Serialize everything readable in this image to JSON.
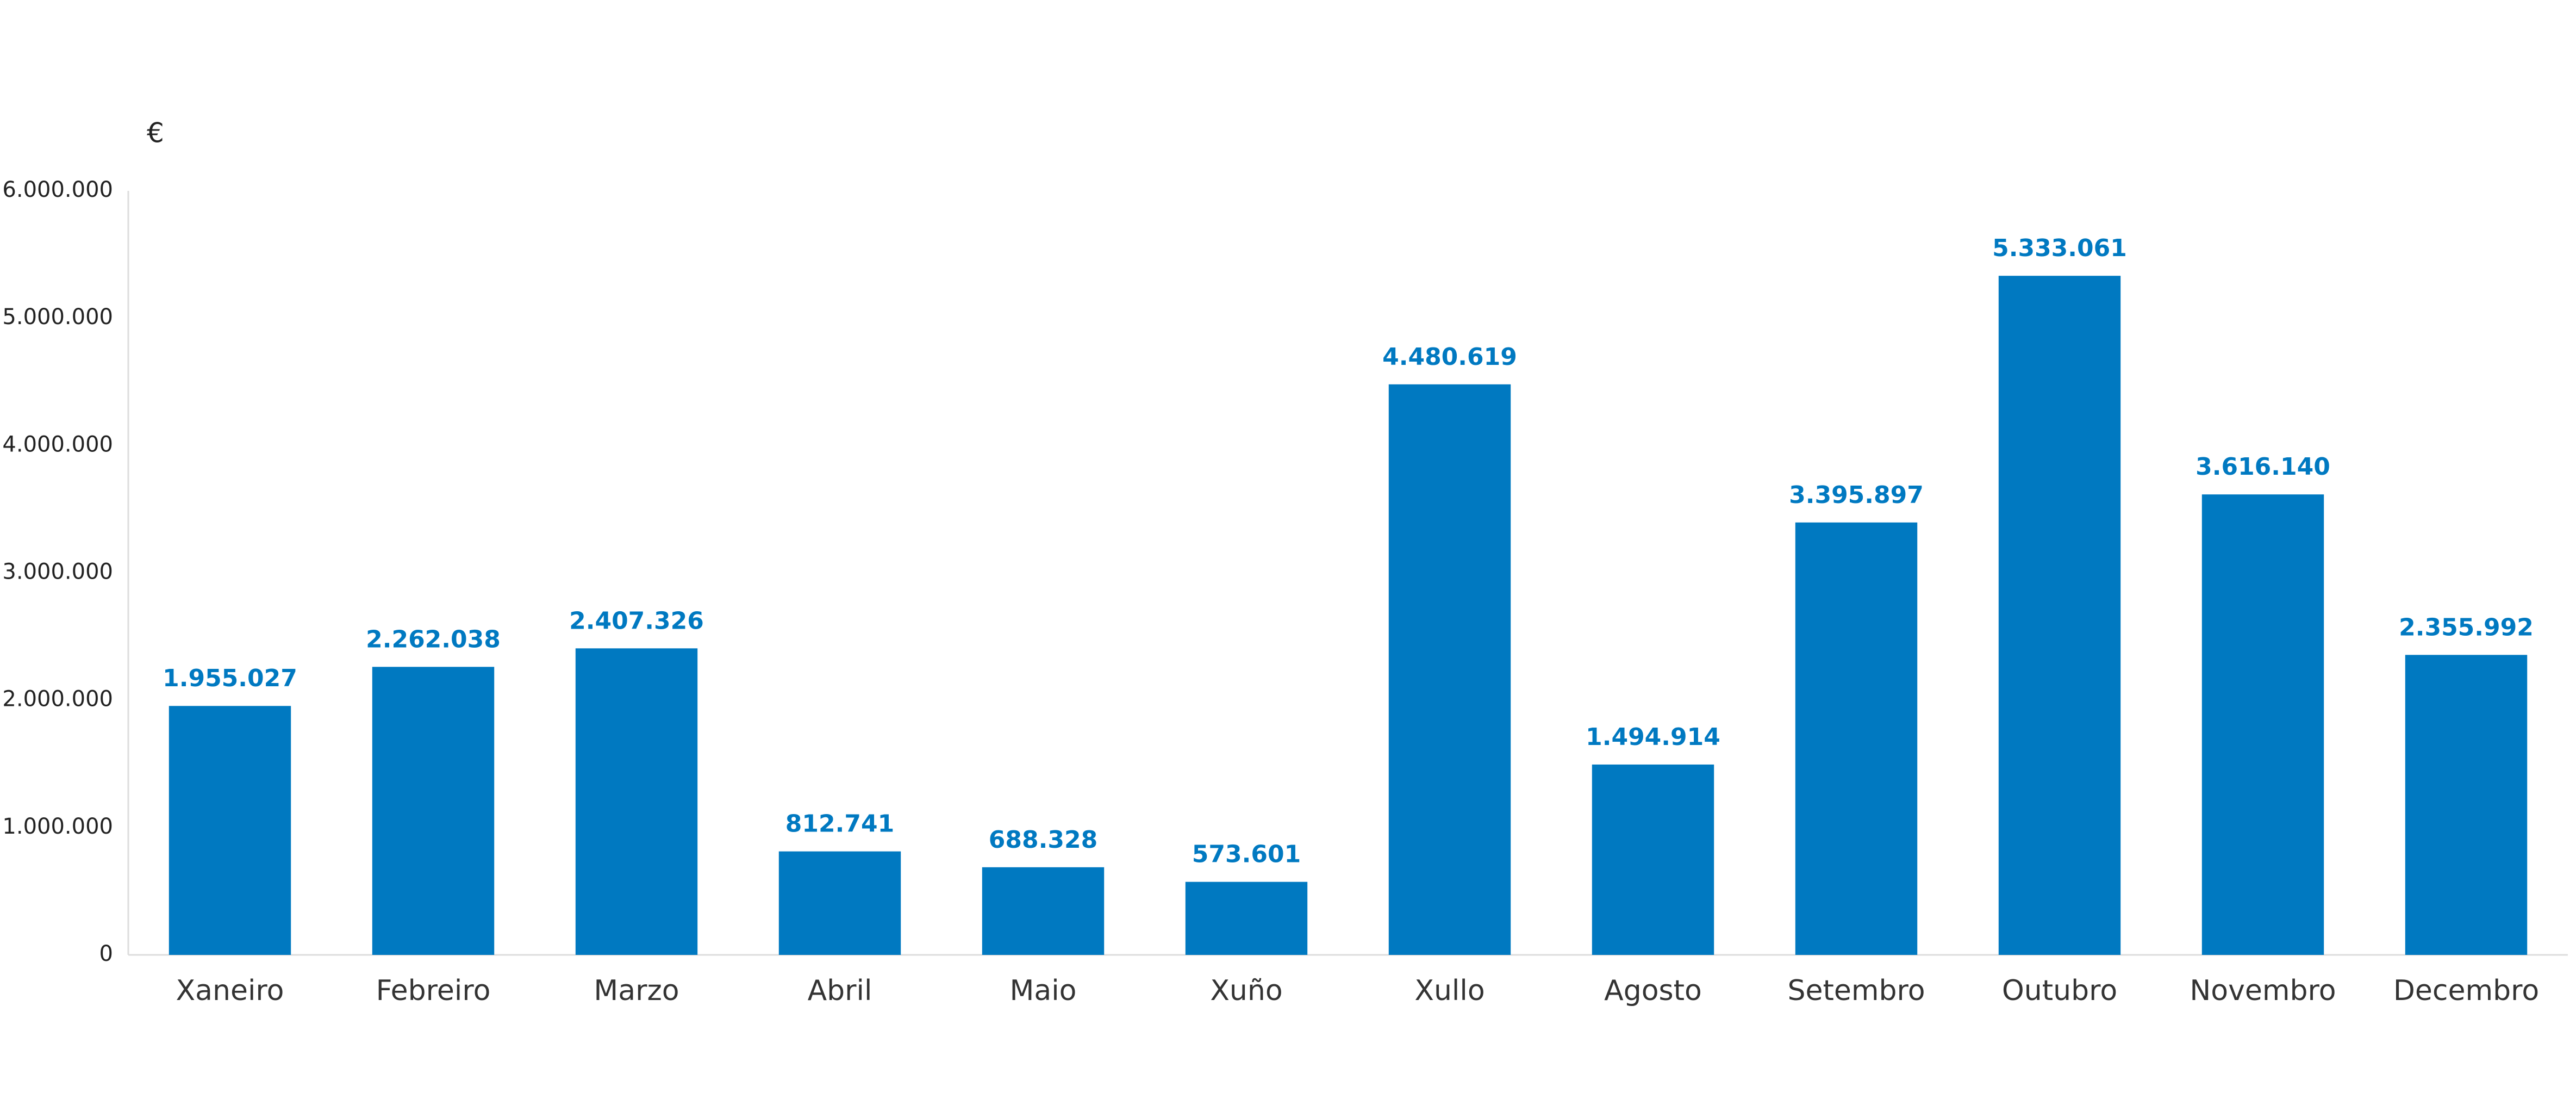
{
  "chart_data": {
    "type": "bar",
    "ylabel": "€",
    "categories": [
      "Xaneiro",
      "Febreiro",
      "Marzo",
      "Abril",
      "Maio",
      "Xuño",
      "Xullo",
      "Agosto",
      "Setembro",
      "Outubro",
      "Novembro",
      "Decembro"
    ],
    "values": [
      1955027,
      2262038,
      2407326,
      812741,
      688328,
      573601,
      4480619,
      1494914,
      3395897,
      5333061,
      3616140,
      2355992
    ],
    "value_labels": [
      "1.955.027",
      "2.262.038",
      "2.407.326",
      "812.741",
      "688.328",
      "573.601",
      "4.480.619",
      "1.494.914",
      "3.395.897",
      "5.333.061",
      "3.616.140",
      "2.355.992"
    ],
    "color": "#0079c1",
    "ylim": [
      0,
      6000000
    ],
    "yticks": [
      0,
      {
        "value": 1000000,
        "label": "1.000.000"
      },
      {
        "value": 2000000,
        "label": "2.000.000"
      },
      {
        "value": 3000000,
        "label": "3.000.000"
      },
      {
        "value": 4000000,
        "label": "4.000.000"
      },
      {
        "value": 5000000,
        "label": "5.000.000"
      },
      {
        "value": 6000000,
        "label": "6.000.000"
      }
    ],
    "grid": false
  }
}
